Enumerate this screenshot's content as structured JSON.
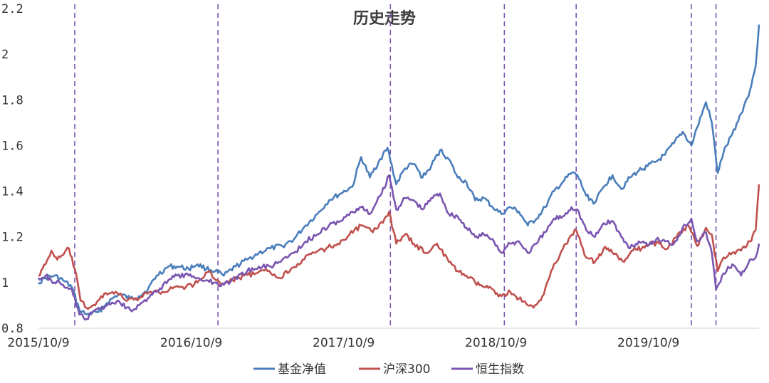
{
  "chart_data": {
    "type": "line",
    "title": "历史走势",
    "xlabel": "",
    "ylabel": "",
    "ylim": [
      0.8,
      2.2
    ],
    "yticks": [
      0.8,
      1,
      1.2,
      1.4,
      1.6,
      1.8,
      2,
      2.2
    ],
    "ytick_labels": [
      "0.8",
      "1",
      "1.2",
      "1.4",
      "1.6",
      "1.8",
      "2",
      "2.2"
    ],
    "xlim": [
      "2015-10-09",
      "2020-06-30"
    ],
    "xticks": [
      "2015-10-09",
      "2016-10-09",
      "2017-10-09",
      "2018-10-09",
      "2019-10-09"
    ],
    "xtick_labels": [
      "2015/10/9",
      "2016/10/9",
      "2017/10/9",
      "2018/10/9",
      "2019/10/9"
    ],
    "grid": false,
    "legend_position": "bottom",
    "vlines": [
      "2016-01-04",
      "2016-12-12",
      "2018-01-29",
      "2018-10-29",
      "2019-04-19",
      "2020-01-20",
      "2020-03-19"
    ],
    "vline_color": "#7a55b0",
    "series": [
      {
        "name": "基金净值",
        "color": "#4a7ebb",
        "points": [
          [
            "2015-10-09",
            1.0
          ],
          [
            "2015-10-26",
            1.02
          ],
          [
            "2015-11-16",
            1.03
          ],
          [
            "2015-12-07",
            1.01
          ],
          [
            "2015-12-28",
            0.98
          ],
          [
            "2016-01-15",
            0.88
          ],
          [
            "2016-02-01",
            0.86
          ],
          [
            "2016-02-29",
            0.87
          ],
          [
            "2016-03-21",
            0.91
          ],
          [
            "2016-04-18",
            0.95
          ],
          [
            "2016-05-16",
            0.93
          ],
          [
            "2016-06-06",
            0.94
          ],
          [
            "2016-06-27",
            0.97
          ],
          [
            "2016-07-18",
            1.03
          ],
          [
            "2016-08-15",
            1.07
          ],
          [
            "2016-09-05",
            1.07
          ],
          [
            "2016-10-03",
            1.06
          ],
          [
            "2016-10-24",
            1.08
          ],
          [
            "2016-11-14",
            1.06
          ],
          [
            "2016-12-05",
            1.05
          ],
          [
            "2016-12-26",
            1.03
          ],
          [
            "2017-01-23",
            1.07
          ],
          [
            "2017-02-20",
            1.1
          ],
          [
            "2017-03-20",
            1.13
          ],
          [
            "2017-04-17",
            1.15
          ],
          [
            "2017-05-15",
            1.16
          ],
          [
            "2017-06-12",
            1.19
          ],
          [
            "2017-07-10",
            1.25
          ],
          [
            "2017-08-07",
            1.3
          ],
          [
            "2017-09-04",
            1.36
          ],
          [
            "2017-10-02",
            1.39
          ],
          [
            "2017-10-30",
            1.42
          ],
          [
            "2017-11-20",
            1.55
          ],
          [
            "2017-12-11",
            1.46
          ],
          [
            "2018-01-01",
            1.53
          ],
          [
            "2018-01-22",
            1.59
          ],
          [
            "2018-02-12",
            1.43
          ],
          [
            "2018-03-05",
            1.5
          ],
          [
            "2018-03-26",
            1.52
          ],
          [
            "2018-04-16",
            1.46
          ],
          [
            "2018-05-07",
            1.51
          ],
          [
            "2018-05-28",
            1.58
          ],
          [
            "2018-06-18",
            1.54
          ],
          [
            "2018-07-09",
            1.46
          ],
          [
            "2018-07-30",
            1.44
          ],
          [
            "2018-08-20",
            1.36
          ],
          [
            "2018-09-10",
            1.37
          ],
          [
            "2018-10-01",
            1.33
          ],
          [
            "2018-10-22",
            1.3
          ],
          [
            "2018-11-12",
            1.33
          ],
          [
            "2018-12-03",
            1.31
          ],
          [
            "2018-12-24",
            1.25
          ],
          [
            "2019-01-14",
            1.28
          ],
          [
            "2019-02-04",
            1.33
          ],
          [
            "2019-02-25",
            1.4
          ],
          [
            "2019-03-18",
            1.44
          ],
          [
            "2019-04-08",
            1.48
          ],
          [
            "2019-04-22",
            1.47
          ],
          [
            "2019-05-13",
            1.38
          ],
          [
            "2019-06-03",
            1.35
          ],
          [
            "2019-06-24",
            1.42
          ],
          [
            "2019-07-15",
            1.47
          ],
          [
            "2019-08-05",
            1.41
          ],
          [
            "2019-08-26",
            1.46
          ],
          [
            "2019-09-16",
            1.49
          ],
          [
            "2019-10-07",
            1.51
          ],
          [
            "2019-10-28",
            1.53
          ],
          [
            "2019-11-18",
            1.56
          ],
          [
            "2019-12-09",
            1.61
          ],
          [
            "2019-12-30",
            1.66
          ],
          [
            "2020-01-20",
            1.6
          ],
          [
            "2020-02-03",
            1.68
          ],
          [
            "2020-02-24",
            1.79
          ],
          [
            "2020-03-09",
            1.7
          ],
          [
            "2020-03-23",
            1.48
          ],
          [
            "2020-04-06",
            1.57
          ],
          [
            "2020-04-27",
            1.65
          ],
          [
            "2020-05-18",
            1.74
          ],
          [
            "2020-06-08",
            1.84
          ],
          [
            "2020-06-22",
            1.95
          ],
          [
            "2020-06-30",
            2.13
          ]
        ]
      },
      {
        "name": "沪深300",
        "color": "#c0504d",
        "points": [
          [
            "2015-10-09",
            1.03
          ],
          [
            "2015-10-26",
            1.08
          ],
          [
            "2015-11-09",
            1.14
          ],
          [
            "2015-11-23",
            1.1
          ],
          [
            "2015-12-07",
            1.12
          ],
          [
            "2015-12-21",
            1.15
          ],
          [
            "2016-01-04",
            1.06
          ],
          [
            "2016-01-18",
            0.92
          ],
          [
            "2016-02-01",
            0.89
          ],
          [
            "2016-02-22",
            0.9
          ],
          [
            "2016-03-14",
            0.95
          ],
          [
            "2016-04-11",
            0.96
          ],
          [
            "2016-05-09",
            0.92
          ],
          [
            "2016-06-06",
            0.93
          ],
          [
            "2016-07-04",
            0.96
          ],
          [
            "2016-08-01",
            0.96
          ],
          [
            "2016-08-29",
            0.98
          ],
          [
            "2016-09-26",
            0.98
          ],
          [
            "2016-10-24",
            1.0
          ],
          [
            "2016-11-21",
            1.05
          ],
          [
            "2016-12-19",
            0.99
          ],
          [
            "2017-01-16",
            1.01
          ],
          [
            "2017-02-13",
            1.03
          ],
          [
            "2017-03-13",
            1.04
          ],
          [
            "2017-04-10",
            1.05
          ],
          [
            "2017-05-08",
            1.02
          ],
          [
            "2017-06-05",
            1.06
          ],
          [
            "2017-07-03",
            1.1
          ],
          [
            "2017-07-31",
            1.13
          ],
          [
            "2017-08-28",
            1.15
          ],
          [
            "2017-09-25",
            1.17
          ],
          [
            "2017-10-23",
            1.21
          ],
          [
            "2017-11-20",
            1.25
          ],
          [
            "2017-12-18",
            1.22
          ],
          [
            "2018-01-15",
            1.28
          ],
          [
            "2018-01-26",
            1.31
          ],
          [
            "2018-02-12",
            1.17
          ],
          [
            "2018-03-05",
            1.21
          ],
          [
            "2018-03-26",
            1.17
          ],
          [
            "2018-04-23",
            1.13
          ],
          [
            "2018-05-21",
            1.17
          ],
          [
            "2018-06-18",
            1.09
          ],
          [
            "2018-07-09",
            1.05
          ],
          [
            "2018-07-30",
            1.03
          ],
          [
            "2018-08-20",
            1.0
          ],
          [
            "2018-09-10",
            0.98
          ],
          [
            "2018-10-01",
            0.97
          ],
          [
            "2018-10-22",
            0.94
          ],
          [
            "2018-11-12",
            0.96
          ],
          [
            "2018-12-03",
            0.93
          ],
          [
            "2018-12-24",
            0.9
          ],
          [
            "2019-01-07",
            0.89
          ],
          [
            "2019-01-28",
            0.94
          ],
          [
            "2019-02-18",
            1.05
          ],
          [
            "2019-03-11",
            1.12
          ],
          [
            "2019-04-01",
            1.19
          ],
          [
            "2019-04-19",
            1.23
          ],
          [
            "2019-05-13",
            1.11
          ],
          [
            "2019-06-03",
            1.09
          ],
          [
            "2019-06-24",
            1.15
          ],
          [
            "2019-07-15",
            1.13
          ],
          [
            "2019-08-12",
            1.09
          ],
          [
            "2019-09-02",
            1.14
          ],
          [
            "2019-09-23",
            1.15
          ],
          [
            "2019-10-14",
            1.17
          ],
          [
            "2019-11-04",
            1.17
          ],
          [
            "2019-11-25",
            1.15
          ],
          [
            "2019-12-16",
            1.2
          ],
          [
            "2020-01-13",
            1.25
          ],
          [
            "2020-02-03",
            1.16
          ],
          [
            "2020-02-24",
            1.24
          ],
          [
            "2020-03-09",
            1.21
          ],
          [
            "2020-03-23",
            1.05
          ],
          [
            "2020-04-06",
            1.11
          ],
          [
            "2020-04-27",
            1.13
          ],
          [
            "2020-05-18",
            1.14
          ],
          [
            "2020-06-08",
            1.18
          ],
          [
            "2020-06-22",
            1.23
          ],
          [
            "2020-06-30",
            1.43
          ]
        ]
      },
      {
        "name": "恒生指数",
        "color": "#7a55b0",
        "points": [
          [
            "2015-10-09",
            1.02
          ],
          [
            "2015-10-26",
            1.03
          ],
          [
            "2015-11-16",
            1.0
          ],
          [
            "2015-12-07",
            0.99
          ],
          [
            "2015-12-28",
            0.97
          ],
          [
            "2016-01-15",
            0.86
          ],
          [
            "2016-02-01",
            0.84
          ],
          [
            "2016-02-22",
            0.88
          ],
          [
            "2016-03-21",
            0.9
          ],
          [
            "2016-04-18",
            0.92
          ],
          [
            "2016-05-16",
            0.88
          ],
          [
            "2016-06-06",
            0.9
          ],
          [
            "2016-06-27",
            0.93
          ],
          [
            "2016-07-18",
            0.96
          ],
          [
            "2016-08-15",
            1.01
          ],
          [
            "2016-09-05",
            1.03
          ],
          [
            "2016-10-03",
            1.03
          ],
          [
            "2016-10-24",
            1.02
          ],
          [
            "2016-11-14",
            1.01
          ],
          [
            "2016-12-05",
            1.0
          ],
          [
            "2016-12-26",
            0.99
          ],
          [
            "2017-01-23",
            1.02
          ],
          [
            "2017-02-20",
            1.05
          ],
          [
            "2017-03-20",
            1.07
          ],
          [
            "2017-04-17",
            1.07
          ],
          [
            "2017-05-15",
            1.1
          ],
          [
            "2017-06-12",
            1.13
          ],
          [
            "2017-07-10",
            1.18
          ],
          [
            "2017-08-07",
            1.21
          ],
          [
            "2017-09-04",
            1.25
          ],
          [
            "2017-10-02",
            1.27
          ],
          [
            "2017-10-30",
            1.31
          ],
          [
            "2017-11-20",
            1.33
          ],
          [
            "2017-12-11",
            1.3
          ],
          [
            "2018-01-08",
            1.39
          ],
          [
            "2018-01-26",
            1.47
          ],
          [
            "2018-02-12",
            1.32
          ],
          [
            "2018-03-05",
            1.37
          ],
          [
            "2018-03-26",
            1.36
          ],
          [
            "2018-04-16",
            1.32
          ],
          [
            "2018-05-07",
            1.37
          ],
          [
            "2018-05-28",
            1.39
          ],
          [
            "2018-06-18",
            1.3
          ],
          [
            "2018-07-09",
            1.29
          ],
          [
            "2018-07-30",
            1.24
          ],
          [
            "2018-08-20",
            1.2
          ],
          [
            "2018-09-10",
            1.21
          ],
          [
            "2018-10-01",
            1.19
          ],
          [
            "2018-10-22",
            1.13
          ],
          [
            "2018-11-12",
            1.17
          ],
          [
            "2018-12-03",
            1.18
          ],
          [
            "2018-12-24",
            1.13
          ],
          [
            "2019-01-14",
            1.17
          ],
          [
            "2019-02-04",
            1.22
          ],
          [
            "2019-02-25",
            1.28
          ],
          [
            "2019-03-18",
            1.29
          ],
          [
            "2019-04-08",
            1.33
          ],
          [
            "2019-04-22",
            1.32
          ],
          [
            "2019-05-13",
            1.23
          ],
          [
            "2019-06-03",
            1.2
          ],
          [
            "2019-06-24",
            1.26
          ],
          [
            "2019-07-15",
            1.27
          ],
          [
            "2019-08-05",
            1.2
          ],
          [
            "2019-08-26",
            1.15
          ],
          [
            "2019-09-16",
            1.18
          ],
          [
            "2019-10-07",
            1.16
          ],
          [
            "2019-10-28",
            1.19
          ],
          [
            "2019-11-18",
            1.18
          ],
          [
            "2019-12-09",
            1.17
          ],
          [
            "2019-12-30",
            1.24
          ],
          [
            "2020-01-20",
            1.28
          ],
          [
            "2020-02-03",
            1.18
          ],
          [
            "2020-02-24",
            1.22
          ],
          [
            "2020-03-09",
            1.13
          ],
          [
            "2020-03-19",
            0.97
          ],
          [
            "2020-04-06",
            1.04
          ],
          [
            "2020-04-27",
            1.08
          ],
          [
            "2020-05-18",
            1.03
          ],
          [
            "2020-06-08",
            1.1
          ],
          [
            "2020-06-22",
            1.11
          ],
          [
            "2020-06-30",
            1.17
          ]
        ]
      }
    ]
  }
}
